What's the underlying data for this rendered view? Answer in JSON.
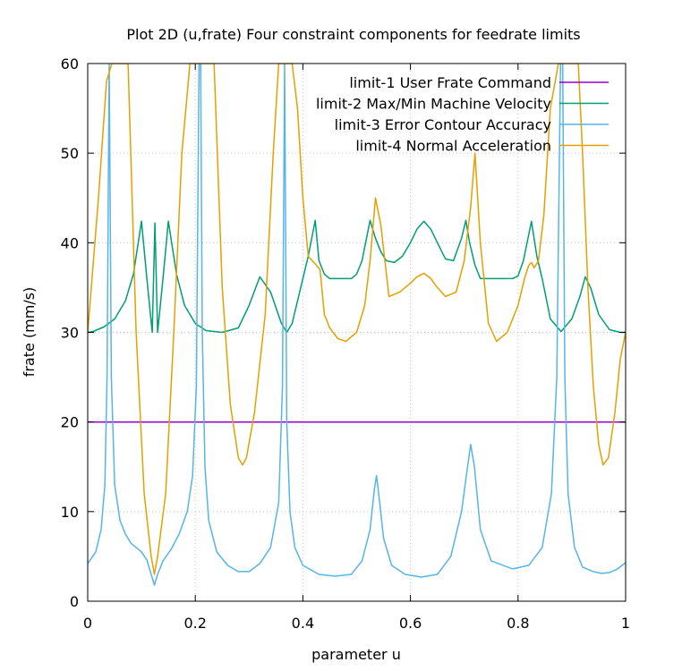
{
  "chart_data": {
    "type": "line",
    "title": "Plot 2D (u,frate) Four constraint components for feedrate limits",
    "xlabel": "parameter u",
    "ylabel": "frate (mm/s)",
    "xlim": [
      0,
      1
    ],
    "ylim": [
      0,
      60
    ],
    "grid": true,
    "legend": "top-right",
    "x_ticks": [
      {
        "value": 0,
        "label": "0"
      },
      {
        "value": 0.2,
        "label": "0.2"
      },
      {
        "value": 0.4,
        "label": "0.4"
      },
      {
        "value": 0.6,
        "label": "0.6"
      },
      {
        "value": 0.8,
        "label": "0.8"
      },
      {
        "value": 1,
        "label": "1"
      }
    ],
    "y_ticks": [
      {
        "value": 0,
        "label": "0"
      },
      {
        "value": 10,
        "label": "10"
      },
      {
        "value": 20,
        "label": "20"
      },
      {
        "value": 30,
        "label": "30"
      },
      {
        "value": 40,
        "label": "40"
      },
      {
        "value": 50,
        "label": "50"
      },
      {
        "value": 60,
        "label": "60"
      }
    ],
    "series": [
      {
        "name": "limit-1 User Frate Command",
        "color": "#9400d3",
        "x": [
          0,
          1
        ],
        "y": [
          20,
          20
        ]
      },
      {
        "name": "limit-2 Max/Min Machine Velocity",
        "color": "#009e73",
        "x": [
          0,
          0.01,
          0.03,
          0.05,
          0.07,
          0.085,
          0.1,
          0.11,
          0.12,
          0.125,
          0.13,
          0.14,
          0.15,
          0.165,
          0.18,
          0.2,
          0.22,
          0.25,
          0.28,
          0.3,
          0.32,
          0.34,
          0.36,
          0.37,
          0.38,
          0.4,
          0.41,
          0.423,
          0.43,
          0.44,
          0.45,
          0.47,
          0.49,
          0.5,
          0.51,
          0.525,
          0.535,
          0.545,
          0.555,
          0.57,
          0.585,
          0.6,
          0.612,
          0.625,
          0.638,
          0.65,
          0.665,
          0.68,
          0.695,
          0.703,
          0.71,
          0.72,
          0.73,
          0.75,
          0.77,
          0.79,
          0.8,
          0.81,
          0.825,
          0.835,
          0.845,
          0.86,
          0.88,
          0.9,
          0.915,
          0.925,
          0.935,
          0.95,
          0.97,
          0.99,
          1
        ],
        "y": [
          30,
          30.1,
          30.6,
          31.5,
          33.5,
          36.5,
          42.4,
          36,
          30,
          42.2,
          30,
          36,
          42.4,
          36.5,
          33,
          31,
          30.2,
          30,
          30.5,
          33,
          36.2,
          34.5,
          31,
          30,
          31,
          36,
          38.5,
          42.5,
          38,
          36.5,
          36,
          36,
          36,
          36.5,
          38,
          42.5,
          40.5,
          39,
          38,
          37.8,
          38.5,
          40,
          41.5,
          42.4,
          41.5,
          40,
          38.2,
          38,
          40.5,
          42.5,
          40,
          37.5,
          36,
          36,
          36,
          36,
          36.3,
          38,
          42.4,
          38.5,
          36,
          31.5,
          30.1,
          31.5,
          34,
          36.2,
          35,
          32,
          30.3,
          30,
          30
        ]
      },
      {
        "name": "limit-3 Error Contour Accuracy",
        "color": "#56b4e9",
        "x": [
          0,
          0.015,
          0.025,
          0.032,
          0.036,
          0.04,
          0.044,
          0.05,
          0.06,
          0.07,
          0.08,
          0.09,
          0.1,
          0.11,
          0.118,
          0.124,
          0.13,
          0.14,
          0.155,
          0.17,
          0.185,
          0.195,
          0.202,
          0.207,
          0.21,
          0.213,
          0.218,
          0.225,
          0.24,
          0.26,
          0.28,
          0.3,
          0.32,
          0.34,
          0.355,
          0.362,
          0.366,
          0.37,
          0.376,
          0.385,
          0.4,
          0.43,
          0.46,
          0.49,
          0.51,
          0.525,
          0.533,
          0.537,
          0.541,
          0.55,
          0.565,
          0.59,
          0.62,
          0.65,
          0.675,
          0.695,
          0.705,
          0.712,
          0.719,
          0.73,
          0.75,
          0.79,
          0.82,
          0.845,
          0.862,
          0.872,
          0.879,
          0.883,
          0.887,
          0.893,
          0.905,
          0.92,
          0.94,
          0.955,
          0.97,
          0.985,
          1
        ],
        "y": [
          4.2,
          5.5,
          8,
          13,
          25,
          60,
          25,
          13,
          9,
          7.5,
          6.5,
          6,
          5.5,
          4.6,
          3,
          1.8,
          3,
          4.5,
          5.8,
          7.5,
          10,
          14,
          24,
          60,
          60,
          30,
          15,
          9,
          5.5,
          4,
          3.3,
          3.3,
          4.2,
          6,
          11,
          24,
          60,
          20,
          10,
          6,
          4,
          3,
          2.8,
          3,
          4.5,
          8,
          12.5,
          14,
          12,
          7,
          4,
          3,
          2.7,
          3,
          5,
          10,
          14.5,
          17.5,
          15,
          8,
          4.5,
          3.6,
          4,
          6,
          12,
          25,
          60,
          60,
          25,
          12,
          6,
          3.8,
          3.3,
          3.1,
          3.2,
          3.6,
          4.3
        ]
      },
      {
        "name": "limit-4 Normal Acceleration",
        "color": "#e69f00",
        "x": [
          0,
          0.02,
          0.035,
          0.045,
          0.06,
          0.075,
          0.09,
          0.105,
          0.118,
          0.124,
          0.13,
          0.145,
          0.16,
          0.175,
          0.19,
          0.205,
          0.22,
          0.235,
          0.25,
          0.265,
          0.28,
          0.288,
          0.295,
          0.31,
          0.33,
          0.345,
          0.355,
          0.37,
          0.38,
          0.39,
          0.4,
          0.41,
          0.425,
          0.432,
          0.44,
          0.45,
          0.465,
          0.48,
          0.5,
          0.515,
          0.525,
          0.535,
          0.545,
          0.56,
          0.58,
          0.6,
          0.612,
          0.625,
          0.638,
          0.65,
          0.665,
          0.685,
          0.7,
          0.712,
          0.72,
          0.73,
          0.745,
          0.76,
          0.78,
          0.8,
          0.812,
          0.82,
          0.825,
          0.83,
          0.838,
          0.848,
          0.86,
          0.875,
          0.895,
          0.905,
          0.912,
          0.92,
          0.93,
          0.94,
          0.95,
          0.958,
          0.968,
          0.98,
          0.99,
          1
        ],
        "y": [
          30,
          45,
          58,
          60,
          60,
          60,
          30,
          12,
          5,
          3,
          5,
          12,
          30,
          50,
          60,
          60,
          60,
          60,
          35,
          22,
          16,
          15.2,
          16,
          21,
          32,
          50,
          60,
          60,
          60,
          55,
          45,
          38.5,
          37.5,
          37,
          32,
          30.5,
          29.3,
          29,
          30,
          33,
          38,
          45,
          42,
          34,
          34.5,
          35.5,
          36.2,
          36.6,
          36,
          35,
          34,
          34.5,
          38,
          44,
          50,
          40,
          31,
          29,
          30,
          33,
          36,
          37.5,
          37.8,
          37.2,
          38,
          43,
          55,
          60,
          60,
          60,
          60,
          50,
          35,
          24,
          17.5,
          15.2,
          16,
          21,
          27,
          30
        ]
      }
    ]
  }
}
